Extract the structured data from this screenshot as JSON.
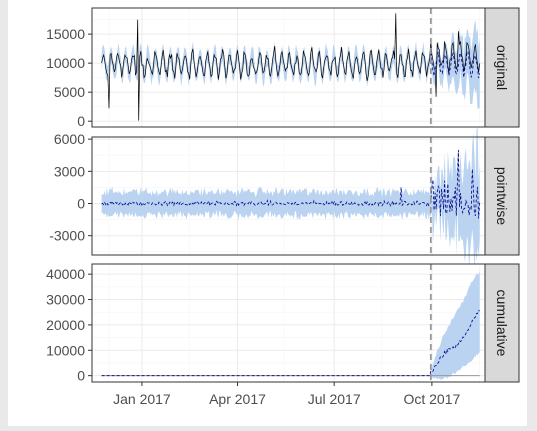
{
  "window": {
    "background": "#e9e9e9",
    "plot_background": "#ffffff"
  },
  "colors": {
    "panel_border": "#333333",
    "grid_major": "#ebebeb",
    "grid_minor": "#f5f5f5",
    "strip_fill": "#d9d9d9",
    "band_fill": "#b9d3f0",
    "observed_line": "#000000",
    "predicted_line": "#00008b",
    "intervention_line": "#999999",
    "tick_label": "#4d4d4d"
  },
  "chart_data": {
    "type": "line",
    "description_free": true,
    "x_axis": {
      "type": "date",
      "range": [
        "2016-11-15",
        "2017-11-20"
      ],
      "ticks": [
        {
          "date": "2017-01-01",
          "label": "Jan 2017"
        },
        {
          "date": "2017-04-01",
          "label": "Apr 2017"
        },
        {
          "date": "2017-07-01",
          "label": "Jul 2017"
        },
        {
          "date": "2017-10-01",
          "label": "Oct 2017"
        }
      ]
    },
    "intervention_date": "2017-09-30",
    "series_start": "2016-11-24",
    "series_end": "2017-11-15",
    "grid": true,
    "panels": [
      {
        "strip": "original",
        "ylim": [
          -1000,
          19500
        ],
        "yticks": [
          0,
          5000,
          10000,
          15000
        ],
        "ytick_labels": [
          "0",
          "5000",
          "10000",
          "15000"
        ],
        "pre_period": {
          "level": 9800,
          "weekly_amplitude": 2300,
          "band_halfwidth": 1300
        },
        "post_period": {
          "predicted_level": 9800,
          "observed_level": 11000,
          "band_halfwidth_growth": [
            1500,
            5500
          ]
        },
        "spikes": [
          {
            "date": "2016-12-28",
            "value": 17500
          },
          {
            "date": "2016-12-29",
            "value": 100
          },
          {
            "date": "2016-12-01",
            "value": 2200
          },
          {
            "date": "2017-08-28",
            "value": 18600
          },
          {
            "date": "2017-10-05",
            "value": 4200
          },
          {
            "date": "2017-10-26",
            "value": 15500
          }
        ]
      },
      {
        "strip": "pointwise",
        "ylim": [
          -4800,
          6200
        ],
        "yticks": [
          -3000,
          0,
          3000,
          6000
        ],
        "ytick_labels": [
          "-3000",
          "0",
          "3000",
          "6000"
        ],
        "pre_period": {
          "level": 0,
          "band_halfwidth": 1100
        },
        "post_period": {
          "level": 1200,
          "band_halfwidth_growth": [
            1500,
            5000
          ]
        },
        "spikes": [
          {
            "date": "2017-09-02",
            "value": 1500
          },
          {
            "date": "2017-10-02",
            "value": 2200
          },
          {
            "date": "2017-10-26",
            "value": 5000
          },
          {
            "date": "2017-11-08",
            "value": 3200
          }
        ]
      },
      {
        "strip": "cumulative",
        "ylim": [
          -2500,
          44000
        ],
        "yticks": [
          0,
          10000,
          20000,
          30000,
          40000
        ],
        "ytick_labels": [
          "0",
          "10000",
          "20000",
          "30000",
          "40000"
        ],
        "pre_period": {
          "level": 0
        },
        "post_period": {
          "mean_points": [
            {
              "date": "2017-09-30",
              "value": 1000
            },
            {
              "date": "2017-10-08",
              "value": 6500
            },
            {
              "date": "2017-10-16",
              "value": 10000
            },
            {
              "date": "2017-10-24",
              "value": 11500
            },
            {
              "date": "2017-11-01",
              "value": 16000
            },
            {
              "date": "2017-11-08",
              "value": 21000
            },
            {
              "date": "2017-11-15",
              "value": 25500
            }
          ],
          "band_upper": [
            {
              "date": "2017-09-30",
              "value": 2500
            },
            {
              "date": "2017-10-10",
              "value": 14000
            },
            {
              "date": "2017-10-20",
              "value": 22000
            },
            {
              "date": "2017-11-01",
              "value": 31000
            },
            {
              "date": "2017-11-10",
              "value": 39000
            },
            {
              "date": "2017-11-15",
              "value": 41000
            }
          ],
          "band_lower": [
            {
              "date": "2017-09-30",
              "value": -500
            },
            {
              "date": "2017-10-08",
              "value": -1500
            },
            {
              "date": "2017-10-18",
              "value": -400
            },
            {
              "date": "2017-10-26",
              "value": 2000
            },
            {
              "date": "2017-11-05",
              "value": 5000
            },
            {
              "date": "2017-11-15",
              "value": 9500
            }
          ]
        }
      }
    ]
  }
}
